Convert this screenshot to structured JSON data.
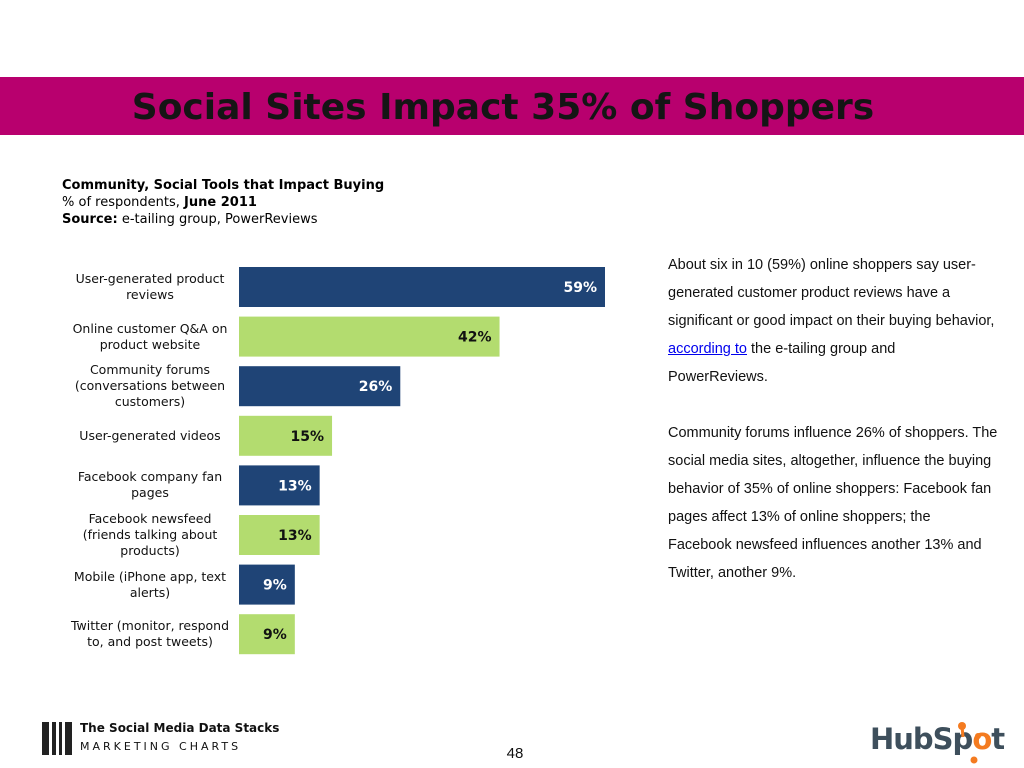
{
  "slide": {
    "title": "Social Sites Impact 35% of Shoppers",
    "page_number": "48"
  },
  "chart_header": {
    "title": "Community, Social Tools that Impact Buying",
    "subtitle_prefix": "% of respondents, ",
    "subtitle_date": "June 2011",
    "source_label": "Source:",
    "source_text": " e-tailing group, PowerReviews"
  },
  "chart_data": {
    "type": "bar",
    "orientation": "horizontal",
    "categories": [
      "User-generated product reviews",
      "Online customer Q&A on product website",
      "Community forums (conversations between customers)",
      "User-generated videos",
      "Facebook company fan pages",
      "Facebook newsfeed (friends talking about products)",
      "Mobile (iPhone app, text alerts)",
      "Twitter (monitor, respond to, and post tweets)"
    ],
    "values": [
      59,
      42,
      26,
      15,
      13,
      13,
      9,
      9
    ],
    "value_labels": [
      "59%",
      "42%",
      "26%",
      "15%",
      "13%",
      "13%",
      "9%",
      "9%"
    ],
    "unit": "%",
    "colors": [
      "#1f4476",
      "#b3dc6f"
    ],
    "label_colors": [
      "#ffffff",
      "#111111"
    ],
    "grid": false,
    "legend": "none"
  },
  "body_text": {
    "p1_before_link": "About six in 10 (59%) online shoppers say user-generated customer product reviews have a significant or good impact on their buying behavior, ",
    "p1_link": "according to",
    "p1_after_link": " the e-tailing group and PowerReviews.",
    "p2": "Community forums influence 26% of shoppers. The social media sites, altogether, influence the buying behavior of 35% of online shoppers: Facebook fan pages affect 13% of online shoppers; the Facebook newsfeed influences another 13% and Twitter, another 9%."
  },
  "footer": {
    "logo_line1": "The Social Media Data Stacks",
    "logo_line2": "MARKETING CHARTS",
    "hubspot_logo": "HubSpot",
    "hubspot_icon": "sprocket-icon",
    "logo_bars_icon": "bars-logo-icon"
  }
}
